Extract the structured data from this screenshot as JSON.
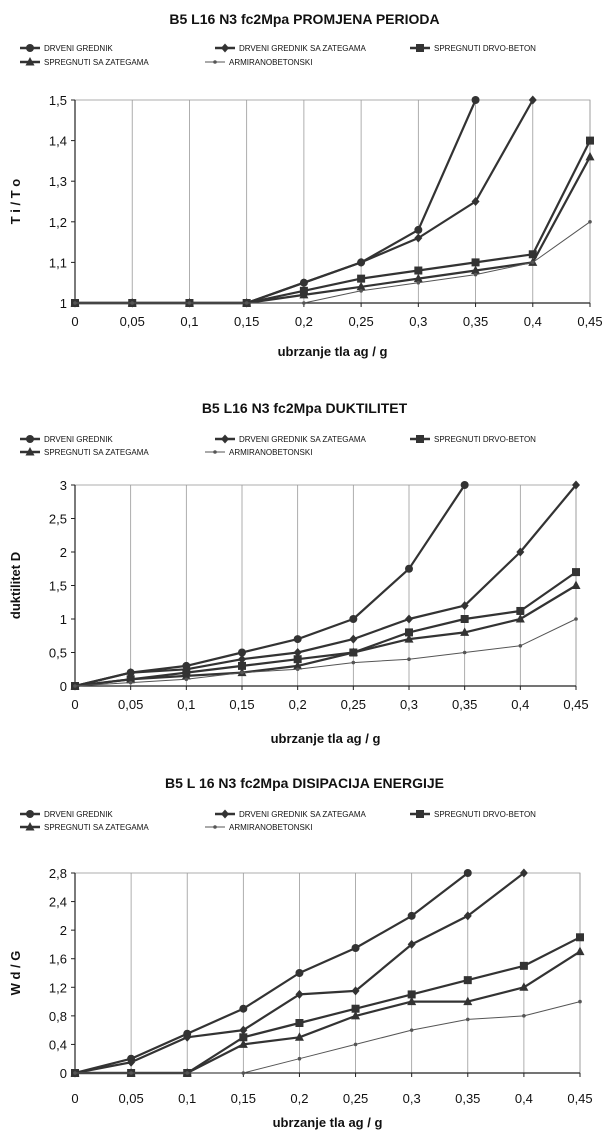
{
  "chart_data": [
    {
      "type": "line",
      "title": "B5  L16  N3  fc2Mpa   PROMJENA PERIODA",
      "xlabel": "ubrzanje tla  ag / g",
      "ylabel": "T i  /  T o",
      "x": [
        "0",
        "0,05",
        "0,1",
        "0,15",
        "0,2",
        "0,25",
        "0,3",
        "0,35",
        "0,4",
        "0,45"
      ],
      "ylim": [
        1,
        1.5
      ],
      "yticks": [
        "1",
        "1,1",
        "1,2",
        "1,3",
        "1,4",
        "1,5"
      ],
      "grid": "vertical",
      "legend_position": "top",
      "series": [
        {
          "name": "DRVENI GREDNIK",
          "marker": "circle",
          "values": [
            1,
            1,
            1,
            1,
            1.05,
            1.1,
            1.18,
            1.5,
            null,
            null
          ]
        },
        {
          "name": "DRVENI GREDNIK SA ZATEGAMA",
          "marker": "diamond",
          "values": [
            1,
            1,
            1,
            1,
            1.05,
            1.1,
            1.16,
            1.25,
            1.5,
            null
          ]
        },
        {
          "name": "SPREGNUTI DRVO-BETON",
          "marker": "square",
          "values": [
            1,
            1,
            1,
            1,
            1.03,
            1.06,
            1.08,
            1.1,
            1.12,
            1.4
          ]
        },
        {
          "name": "SPREGNUTI SA ZATEGAMA",
          "marker": "triangle",
          "values": [
            1,
            1,
            1,
            1,
            1.02,
            1.04,
            1.06,
            1.08,
            1.1,
            1.36
          ]
        },
        {
          "name": "ARMIRANOBETONSKI",
          "marker": "dot",
          "values": [
            1,
            1,
            1,
            1,
            1.0,
            1.03,
            1.05,
            1.07,
            1.1,
            1.2
          ]
        }
      ]
    },
    {
      "type": "line",
      "title": "B5  L16  N3  fc2Mpa  DUKTILITET",
      "xlabel": "ubrzanje tla  ag / g",
      "ylabel": "duktilitet  D",
      "x": [
        "0",
        "0,05",
        "0,1",
        "0,15",
        "0,2",
        "0,25",
        "0,3",
        "0,35",
        "0,4",
        "0,45"
      ],
      "ylim": [
        0,
        3
      ],
      "yticks": [
        "0",
        "0,5",
        "1",
        "1,5",
        "2",
        "2,5",
        "3"
      ],
      "grid": "vertical",
      "legend_position": "top",
      "series": [
        {
          "name": "DRVENI GREDNIK",
          "marker": "circle",
          "values": [
            0,
            0.2,
            0.3,
            0.5,
            0.7,
            1.0,
            1.75,
            3.0,
            null,
            null
          ]
        },
        {
          "name": "DRVENI GREDNIK SA ZATEGAMA",
          "marker": "diamond",
          "values": [
            0,
            0.2,
            0.25,
            0.4,
            0.5,
            0.7,
            1.0,
            1.2,
            2.0,
            3.0
          ]
        },
        {
          "name": "SPREGNUTI DRVO-BETON",
          "marker": "square",
          "values": [
            0,
            0.1,
            0.2,
            0.3,
            0.4,
            0.5,
            0.8,
            1.0,
            1.12,
            1.7
          ]
        },
        {
          "name": "SPREGNUTI SA ZATEGAMA",
          "marker": "triangle",
          "values": [
            0,
            0.1,
            0.15,
            0.2,
            0.3,
            0.5,
            0.7,
            0.8,
            1.0,
            1.5
          ]
        },
        {
          "name": "ARMIRANOBETONSKI",
          "marker": "dot",
          "values": [
            0,
            0.05,
            0.1,
            0.2,
            0.25,
            0.35,
            0.4,
            0.5,
            0.6,
            1.0
          ]
        }
      ]
    },
    {
      "type": "line",
      "title": "B5 L 16  N3  fc2Mpa  DISIPACIJA ENERGIJE",
      "xlabel": "ubrzanje tla  ag / g",
      "ylabel": "W d  /  G",
      "x": [
        "0",
        "0,05",
        "0,1",
        "0,15",
        "0,2",
        "0,25",
        "0,3",
        "0,35",
        "0,4",
        "0,45"
      ],
      "ylim": [
        0,
        2.8
      ],
      "yticks": [
        "0",
        "0,4",
        "0,8",
        "1,2",
        "1,6",
        "2",
        "2,4",
        "2,8"
      ],
      "grid": "vertical",
      "legend_position": "top",
      "series": [
        {
          "name": "DRVENI GREDNIK",
          "marker": "circle",
          "values": [
            0,
            0.2,
            0.55,
            0.9,
            1.4,
            1.75,
            2.2,
            2.8,
            null,
            null
          ]
        },
        {
          "name": "DRVENI GREDNIK SA ZATEGAMA",
          "marker": "diamond",
          "values": [
            0,
            0.15,
            0.5,
            0.6,
            1.1,
            1.15,
            1.8,
            2.2,
            2.8,
            null
          ]
        },
        {
          "name": "SPREGNUTI DRVO-BETON",
          "marker": "square",
          "values": [
            0,
            0.0,
            0.0,
            0.5,
            0.7,
            0.9,
            1.1,
            1.3,
            1.5,
            1.9
          ]
        },
        {
          "name": "SPREGNUTI SA ZATEGAMA",
          "marker": "triangle",
          "values": [
            0,
            0.0,
            0.0,
            0.4,
            0.5,
            0.8,
            1.0,
            1.0,
            1.2,
            1.7
          ]
        },
        {
          "name": "ARMIRANOBETONSKI",
          "marker": "dot",
          "values": [
            0,
            0.0,
            0.0,
            0.0,
            0.2,
            0.4,
            0.6,
            0.75,
            0.8,
            1.0
          ]
        }
      ]
    }
  ]
}
